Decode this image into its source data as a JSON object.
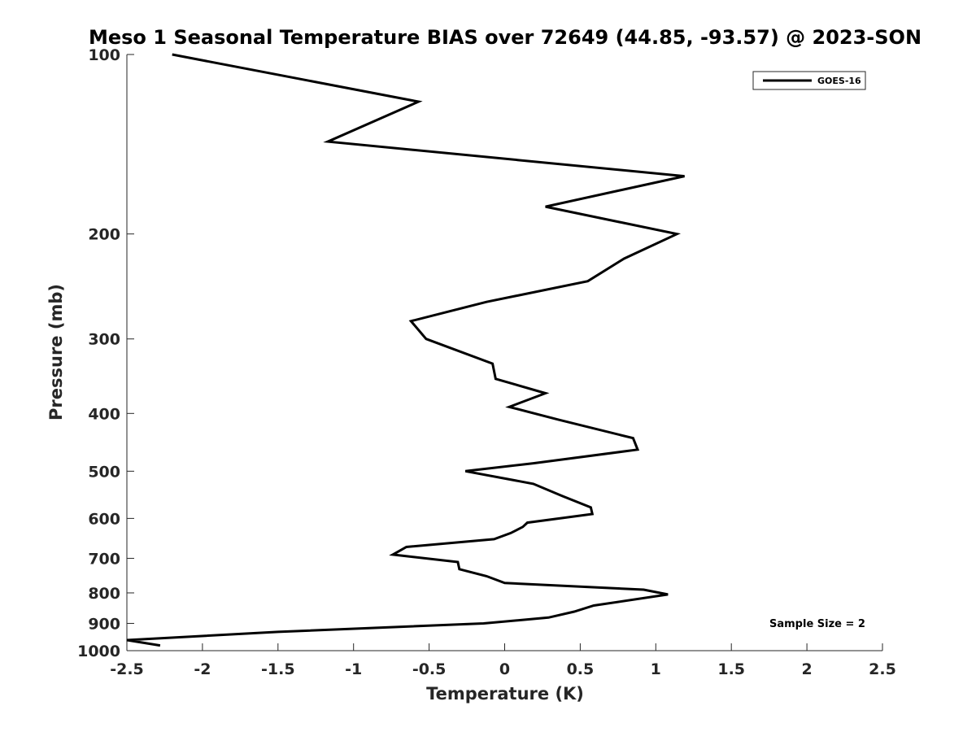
{
  "chart_data": {
    "type": "line",
    "title": "Meso 1 Seasonal Temperature BIAS over 72649 (44.85, -93.57) @ 2023-SON",
    "xlabel": "Temperature (K)",
    "ylabel": "Pressure (mb)",
    "xlim": [
      -2.5,
      2.5
    ],
    "ylim": [
      1000,
      100
    ],
    "y_scale": "log",
    "x_ticks": [
      "-2.5",
      "-2",
      "-1.5",
      "-1",
      "-0.5",
      "0",
      "0.5",
      "1",
      "1.5",
      "2",
      "2.5"
    ],
    "y_ticks": [
      "100",
      "200",
      "300",
      "400",
      "500",
      "600",
      "700",
      "800",
      "900",
      "1000"
    ],
    "grid": false,
    "legend": {
      "position": "top-right",
      "entries": [
        "GOES-16"
      ]
    },
    "annotation": "Sample Size = 2",
    "line_color": "#000000",
    "series": [
      {
        "name": "GOES-16",
        "points": [
          {
            "x": -2.2,
            "p": 100
          },
          {
            "x": -0.57,
            "p": 120
          },
          {
            "x": -1.17,
            "p": 140
          },
          {
            "x": 1.19,
            "p": 160
          },
          {
            "x": 0.27,
            "p": 180
          },
          {
            "x": 1.14,
            "p": 200
          },
          {
            "x": 0.79,
            "p": 220
          },
          {
            "x": 0.55,
            "p": 240
          },
          {
            "x": -0.12,
            "p": 260
          },
          {
            "x": -0.62,
            "p": 280
          },
          {
            "x": -0.52,
            "p": 300
          },
          {
            "x": -0.08,
            "p": 330
          },
          {
            "x": -0.06,
            "p": 350
          },
          {
            "x": 0.27,
            "p": 370
          },
          {
            "x": 0.03,
            "p": 390
          },
          {
            "x": 0.36,
            "p": 410
          },
          {
            "x": 0.85,
            "p": 440
          },
          {
            "x": 0.88,
            "p": 460
          },
          {
            "x": 0.19,
            "p": 485
          },
          {
            "x": -0.26,
            "p": 500
          },
          {
            "x": 0.19,
            "p": 525
          },
          {
            "x": 0.38,
            "p": 550
          },
          {
            "x": 0.57,
            "p": 575
          },
          {
            "x": 0.58,
            "p": 590
          },
          {
            "x": 0.15,
            "p": 610
          },
          {
            "x": 0.12,
            "p": 620
          },
          {
            "x": 0.04,
            "p": 635
          },
          {
            "x": -0.07,
            "p": 650
          },
          {
            "x": -0.65,
            "p": 670
          },
          {
            "x": -0.74,
            "p": 690
          },
          {
            "x": -0.31,
            "p": 710
          },
          {
            "x": -0.3,
            "p": 730
          },
          {
            "x": -0.12,
            "p": 750
          },
          {
            "x": 0.0,
            "p": 770
          },
          {
            "x": 0.92,
            "p": 790
          },
          {
            "x": 1.08,
            "p": 805
          },
          {
            "x": 0.59,
            "p": 840
          },
          {
            "x": 0.46,
            "p": 860
          },
          {
            "x": 0.29,
            "p": 880
          },
          {
            "x": -0.14,
            "p": 900
          },
          {
            "x": -0.83,
            "p": 915
          },
          {
            "x": -1.5,
            "p": 930
          },
          {
            "x": -2.5,
            "p": 960
          },
          {
            "x": -2.28,
            "p": 980
          }
        ]
      }
    ]
  }
}
